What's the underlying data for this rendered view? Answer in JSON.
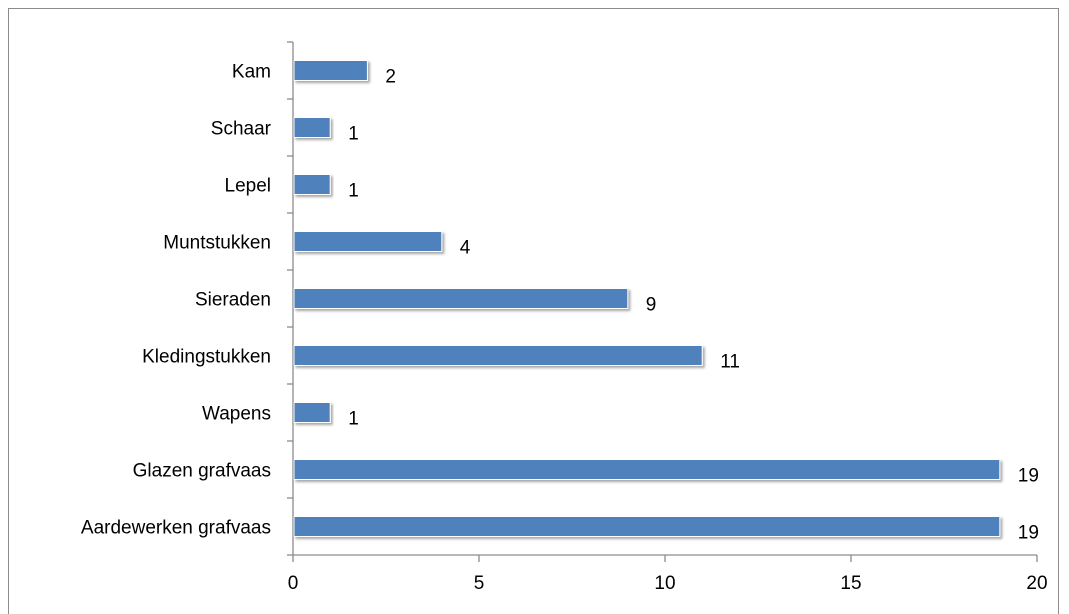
{
  "chart_data": {
    "type": "bar",
    "orientation": "horizontal",
    "categories": [
      "Aardewerken grafvaas",
      "Glazen grafvaas",
      "Wapens",
      "Kledingstukken",
      "Sieraden",
      "Muntstukken",
      "Lepel",
      "Schaar",
      "Kam"
    ],
    "values": [
      19,
      19,
      1,
      11,
      9,
      4,
      1,
      1,
      2
    ],
    "xlim": [
      0,
      20
    ],
    "xticks": [
      0,
      5,
      10,
      15,
      20
    ],
    "title": "",
    "xlabel": "",
    "ylabel": "",
    "bar_color": "#4f81bd",
    "grid": false,
    "legend": "none",
    "data_labels": true
  }
}
